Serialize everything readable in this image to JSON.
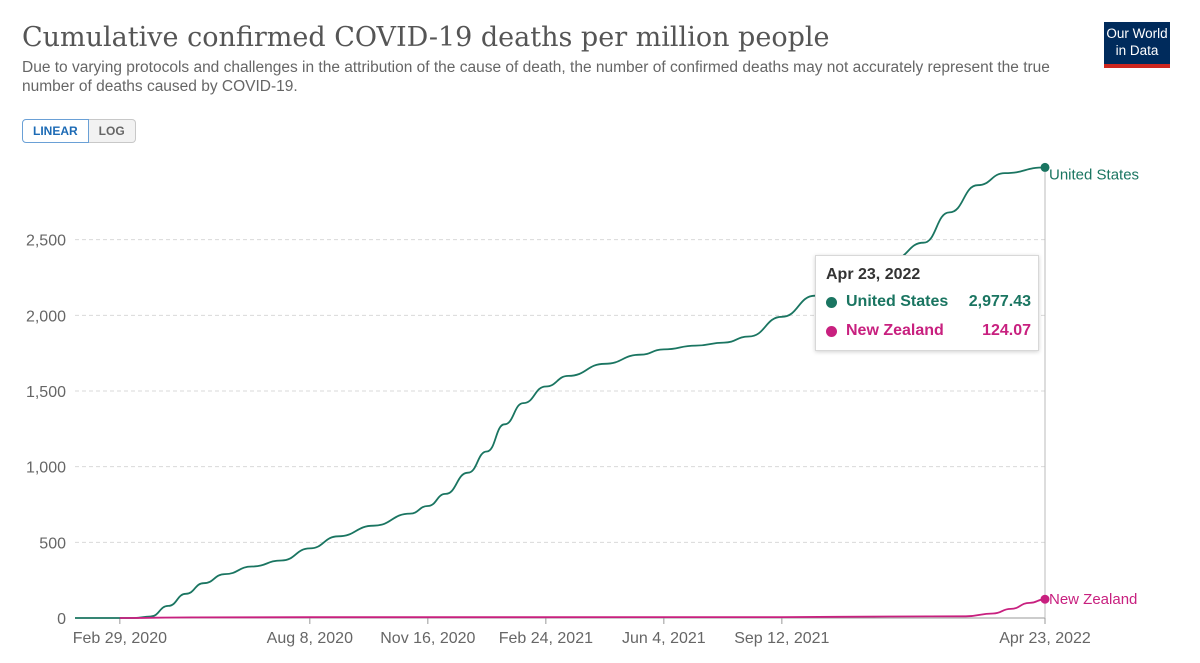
{
  "header": {
    "title": "Cumulative confirmed COVID-19 deaths per million people",
    "subtitle": "Due to varying protocols and challenges in the attribution of the cause of death, the number of confirmed deaths may not accurately represent the true number of deaths caused by COVID-19.",
    "logo_line1": "Our World",
    "logo_line2": "in Data"
  },
  "scale_toggle": {
    "linear_label": "LINEAR",
    "log_label": "LOG",
    "selected": "LINEAR"
  },
  "tooltip": {
    "date": "Apr 23, 2022",
    "rows": [
      {
        "name": "United States",
        "value": "2,977.43",
        "color": "#1a7561"
      },
      {
        "name": "New Zealand",
        "value": "124.07",
        "color": "#c8207f"
      }
    ]
  },
  "colors": {
    "us": "#1a7561",
    "nz": "#c8207f",
    "grid": "#d9d9d9",
    "axis": "#666666"
  },
  "chart_data": {
    "type": "line",
    "title": "Cumulative confirmed COVID-19 deaths per million people",
    "xlabel": "",
    "ylabel": "",
    "x_ticks": [
      "Feb 29, 2020",
      "Aug 8, 2020",
      "Nov 16, 2020",
      "Feb 24, 2021",
      "Jun 4, 2021",
      "Sep 12, 2021",
      "Apr 23, 2022"
    ],
    "y_ticks": [
      "0",
      "500",
      "1,000",
      "1,500",
      "2,000",
      "2,500"
    ],
    "ylim": [
      0,
      3000
    ],
    "grid": true,
    "end_labels": true,
    "series": [
      {
        "name": "United States",
        "points": [
          [
            "2020-01-22",
            0
          ],
          [
            "2020-03-12",
            0
          ],
          [
            "2020-03-26",
            10
          ],
          [
            "2020-04-10",
            80
          ],
          [
            "2020-04-25",
            160
          ],
          [
            "2020-05-10",
            230
          ],
          [
            "2020-05-28",
            290
          ],
          [
            "2020-06-20",
            340
          ],
          [
            "2020-07-15",
            380
          ],
          [
            "2020-08-08",
            460
          ],
          [
            "2020-09-01",
            540
          ],
          [
            "2020-10-01",
            610
          ],
          [
            "2020-11-01",
            690
          ],
          [
            "2020-11-16",
            740
          ],
          [
            "2020-12-01",
            820
          ],
          [
            "2020-12-20",
            960
          ],
          [
            "2021-01-05",
            1100
          ],
          [
            "2021-01-20",
            1280
          ],
          [
            "2021-02-05",
            1420
          ],
          [
            "2021-02-24",
            1530
          ],
          [
            "2021-03-15",
            1600
          ],
          [
            "2021-04-15",
            1680
          ],
          [
            "2021-05-15",
            1740
          ],
          [
            "2021-06-04",
            1775
          ],
          [
            "2021-07-01",
            1800
          ],
          [
            "2021-07-25",
            1820
          ],
          [
            "2021-08-15",
            1860
          ],
          [
            "2021-09-12",
            1990
          ],
          [
            "2021-10-10",
            2130
          ],
          [
            "2021-11-10",
            2240
          ],
          [
            "2021-12-15",
            2370
          ],
          [
            "2022-01-10",
            2480
          ],
          [
            "2022-02-01",
            2680
          ],
          [
            "2022-02-25",
            2860
          ],
          [
            "2022-03-20",
            2940
          ],
          [
            "2022-04-23",
            2977.43
          ]
        ]
      },
      {
        "name": "New Zealand",
        "points": [
          [
            "2020-02-29",
            0
          ],
          [
            "2020-05-01",
            4
          ],
          [
            "2020-08-08",
            5
          ],
          [
            "2021-02-24",
            5
          ],
          [
            "2021-09-12",
            6
          ],
          [
            "2021-12-15",
            10
          ],
          [
            "2022-02-15",
            11
          ],
          [
            "2022-03-10",
            30
          ],
          [
            "2022-03-25",
            60
          ],
          [
            "2022-04-10",
            100
          ],
          [
            "2022-04-23",
            124.07
          ]
        ]
      }
    ]
  }
}
